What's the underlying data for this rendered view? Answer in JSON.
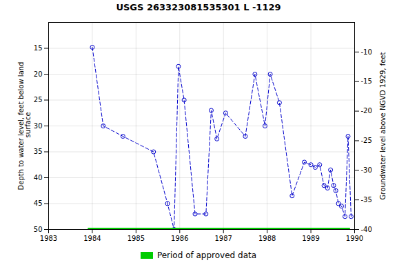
{
  "chart_data": {
    "type": "line",
    "title": "USGS 263323081535301 L  -1129",
    "ylabel": "Depth to water level, feet below land\n surface",
    "y2label": "Groundwater level above NGVD 1929, feet",
    "xlim": [
      1983,
      1990
    ],
    "xticks": [
      1983,
      1984,
      1985,
      1986,
      1987,
      1988,
      1989,
      1990
    ],
    "ylim": [
      50,
      10
    ],
    "yticks": [
      15,
      20,
      25,
      30,
      35,
      40,
      45,
      50
    ],
    "y2lim": [
      -40,
      -5
    ],
    "y2ticks": [
      -10,
      -15,
      -20,
      -25,
      -30,
      -35,
      -40
    ],
    "grid": true,
    "legend": "bottom",
    "x": [
      1984.0,
      1984.25,
      1984.7,
      1985.4,
      1985.72,
      1985.87,
      1985.97,
      1986.1,
      1986.35,
      1986.6,
      1986.72,
      1986.85,
      1987.05,
      1987.5,
      1987.72,
      1987.95,
      1988.07,
      1988.28,
      1988.57,
      1988.85,
      1989.0,
      1989.1,
      1989.2,
      1989.3,
      1989.38,
      1989.45,
      1989.52,
      1989.57,
      1989.63,
      1989.7,
      1989.78,
      1989.85,
      1989.92
    ],
    "series": [
      {
        "type": "line",
        "color": "#0000cc",
        "line_style": "dashed",
        "marker": "open_circle",
        "values": [
          14.8,
          30.0,
          32.0,
          35.0,
          45.0,
          50.0,
          18.5,
          25.0,
          47.0,
          47.0,
          27.0,
          32.5,
          27.5,
          32.0,
          20.0,
          30.0,
          20.0,
          25.5,
          43.5,
          37.0,
          37.5,
          38.0,
          37.5,
          41.5,
          42.0,
          38.5,
          41.5,
          42.5,
          45.0,
          45.5,
          47.5,
          32.0,
          47.5
        ]
      },
      {
        "name": "Period of approved data",
        "type": "rule",
        "color": "#00cc00",
        "x": [
          1983.896,
          1989.895
        ],
        "values": [
          50.0,
          50.0
        ]
      }
    ]
  }
}
